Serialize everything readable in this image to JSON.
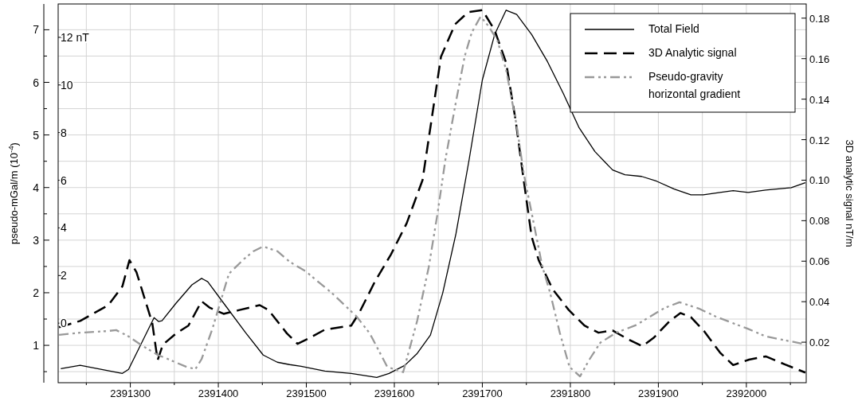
{
  "chart_data": {
    "type": "line",
    "ylabel": "pseudo-mGal/m (10$^{-4}$)",
    "y2label": "3D analytic signal nT/m",
    "xlim": [
      2391218,
      2392068
    ],
    "xticks": [
      {
        "value": 2391250,
        "label": null
      },
      2391300,
      {
        "value": 2391350,
        "label": null
      },
      2391400,
      {
        "value": 2391450,
        "label": null
      },
      2391500,
      {
        "value": 2391550,
        "label": null
      },
      2391600,
      {
        "value": 2391650,
        "label": null
      },
      2391700,
      {
        "value": 2391750,
        "label": null
      },
      2391800,
      {
        "value": 2391850,
        "label": null
      },
      2391900,
      {
        "value": 2391950,
        "label": null
      },
      2392000,
      {
        "value": 2392050,
        "label": null
      }
    ],
    "ylim": [
      0.29,
      7.49
    ],
    "yticks": [
      {
        "value": 0.5,
        "label": null
      },
      1,
      {
        "value": 1.5,
        "label": null
      },
      2,
      {
        "value": 2.5,
        "label": null
      },
      3,
      {
        "value": 3.5,
        "label": null
      },
      4,
      {
        "value": 4.5,
        "label": null
      },
      5,
      {
        "value": 5.5,
        "label": null
      },
      6,
      {
        "value": 6.5,
        "label": null
      },
      7
    ],
    "y2lim": [
      0,
      0.187
    ],
    "y2ticks": [
      0.02,
      0.04,
      0.06,
      0.08,
      {
        "value": 0.1,
        "label": "0.10"
      },
      0.12,
      0.14,
      0.16,
      0.18
    ],
    "y3lim": [
      -2.5,
      13.4
    ],
    "y3ticks": [
      0,
      2,
      4,
      6,
      8,
      10,
      {
        "value": 12,
        "label": "12 nT"
      }
    ],
    "grid": true,
    "legend": "top right",
    "series": [
      {
        "name": "Total Field",
        "color": "#000000",
        "axis": "y3",
        "line_style": "solid",
        "x": [
          2391221,
          2391243,
          2391291,
          2391298,
          2391327,
          2391332,
          2391336,
          2391352,
          2391370,
          2391381,
          2391388,
          2391406,
          2391431,
          2391451,
          2391467,
          2391481,
          2391494,
          2391521,
          2391551,
          2391580,
          2391594,
          2391612,
          2391626,
          2391641,
          2391655,
          2391670,
          2391685,
          2391700,
          2391714,
          2391727,
          2391739,
          2391756,
          2391774,
          2391792,
          2391810,
          2391828,
          2391848,
          2391862,
          2391881,
          2391898,
          2391918,
          2391937,
          2391951,
          2391970,
          2391985,
          2392002,
          2392022,
          2392051,
          2392067
        ],
        "values": [
          -1.91,
          -1.77,
          -2.11,
          -1.94,
          0.23,
          0.07,
          0.1,
          0.84,
          1.61,
          1.88,
          1.74,
          0.84,
          -0.4,
          -1.34,
          -1.64,
          -1.74,
          -1.81,
          -2.01,
          -2.11,
          -2.28,
          -2.11,
          -1.77,
          -1.27,
          -0.5,
          1.27,
          3.75,
          6.87,
          10.21,
          12.12,
          13.14,
          12.96,
          12.12,
          10.98,
          9.64,
          8.2,
          7.2,
          6.43,
          6.23,
          6.16,
          5.96,
          5.63,
          5.39,
          5.39,
          5.49,
          5.56,
          5.49,
          5.59,
          5.69,
          5.9
        ]
      },
      {
        "name": "3D Analytic signal",
        "color": "#000000",
        "axis": "y2",
        "line_style": "dashed",
        "x": [
          2391219,
          2391243,
          2391275,
          2391291,
          2391299,
          2391307,
          2391325,
          2391331,
          2391337,
          2391352,
          2391366,
          2391381,
          2391390,
          2391406,
          2391424,
          2391447,
          2391457,
          2391478,
          2391490,
          2391503,
          2391521,
          2391551,
          2391560,
          2391578,
          2391596,
          2391614,
          2391632,
          2391653,
          2391669,
          2391684,
          2391700,
          2391714,
          2391727,
          2391738,
          2391747,
          2391756,
          2391764,
          2391780,
          2391798,
          2391816,
          2391832,
          2391848,
          2391865,
          2391882,
          2391895,
          2391913,
          2391925,
          2391937,
          2391952,
          2391970,
          2391985,
          2392003,
          2392022,
          2392044,
          2392067
        ],
        "values": [
          0.0274,
          0.0305,
          0.0383,
          0.0476,
          0.0605,
          0.0546,
          0.0293,
          0.0111,
          0.0188,
          0.0243,
          0.0282,
          0.0402,
          0.0371,
          0.034,
          0.0359,
          0.0383,
          0.0359,
          0.0243,
          0.0192,
          0.0219,
          0.0262,
          0.0282,
          0.0344,
          0.05,
          0.0632,
          0.0787,
          0.1,
          0.161,
          0.177,
          0.183,
          0.184,
          0.174,
          0.158,
          0.129,
          0.1,
          0.0721,
          0.0605,
          0.0461,
          0.036,
          0.0282,
          0.0247,
          0.0258,
          0.0216,
          0.018,
          0.0223,
          0.0305,
          0.0344,
          0.0324,
          0.0254,
          0.0149,
          0.0087,
          0.0114,
          0.013,
          0.009,
          0.005
        ]
      },
      {
        "name": "Pseudo-gravity horizontal gradient",
        "color": "#999999",
        "line_style": "dashdot",
        "x": [
          2391219,
          2391243,
          2391273,
          2391284,
          2391298,
          2391313,
          2391331,
          2391347,
          2391364,
          2391374,
          2391381,
          2391393,
          2391412,
          2391429,
          2391440,
          2391451,
          2391467,
          2391481,
          2391499,
          2391530,
          2391557,
          2391572,
          2391592,
          2391610,
          2391626,
          2391639,
          2391649,
          2391658,
          2391669,
          2391680,
          2391688,
          2391698,
          2391707,
          2391717,
          2391727,
          2391739,
          2391747,
          2391759,
          2391768,
          2391777,
          2391788,
          2391799,
          2391811,
          2391822,
          2391834,
          2391852,
          2391874,
          2391889,
          2391907,
          2391924,
          2391946,
          2391965,
          2391985,
          2392001,
          2392022,
          2392067
        ],
        "values": [
          1.2,
          1.24,
          1.27,
          1.29,
          1.17,
          1.0,
          0.82,
          0.71,
          0.59,
          0.55,
          0.74,
          1.3,
          2.36,
          2.64,
          2.79,
          2.88,
          2.79,
          2.59,
          2.41,
          1.98,
          1.55,
          1.23,
          0.59,
          0.49,
          1.47,
          2.48,
          3.5,
          4.53,
          5.54,
          6.5,
          6.95,
          7.25,
          7.07,
          6.8,
          6.24,
          5.18,
          4.27,
          3.27,
          2.51,
          2.0,
          1.24,
          0.59,
          0.41,
          0.74,
          1.05,
          1.24,
          1.38,
          1.53,
          1.71,
          1.82,
          1.7,
          1.55,
          1.42,
          1.32,
          1.17,
          1.02
        ]
      }
    ]
  }
}
